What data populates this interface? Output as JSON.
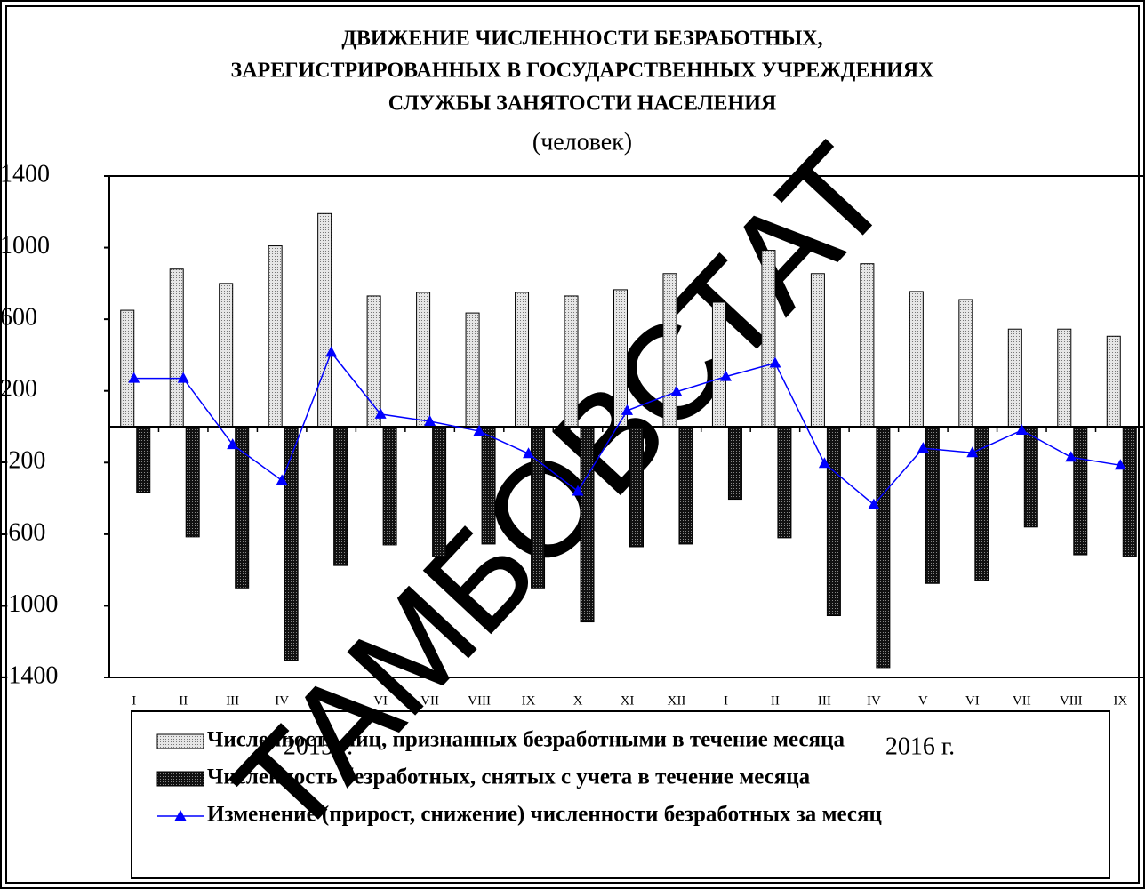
{
  "chart_data": {
    "type": "bar_line",
    "title_lines": [
      "ДВИЖЕНИЕ ЧИСЛЕННОСТИ БЕЗРАБОТНЫХ,",
      "ЗАРЕГИСТРИРОВАННЫХ В ГОСУДАРСТВЕННЫХ УЧРЕЖДЕНИЯХ",
      "СЛУЖБЫ ЗАНЯТОСТИ НАСЕЛЕНИЯ"
    ],
    "subtitle": "(человек)",
    "watermark": "ТАМБОВСТАТ",
    "categories": [
      "I",
      "II",
      "III",
      "IV",
      "V",
      "VI",
      "VII",
      "VIII",
      "IX",
      "X",
      "XI",
      "XII",
      "I",
      "II",
      "III",
      "IV",
      "V",
      "VI",
      "VII",
      "VIII",
      "IX"
    ],
    "groups": [
      "2015 г.",
      "2016 г."
    ],
    "series": [
      {
        "name": "Численность лиц, признанных безработными в течение месяца",
        "type": "bar",
        "color": "#e6e6e6",
        "values": [
          650,
          880,
          800,
          1010,
          1190,
          730,
          750,
          635,
          750,
          730,
          765,
          855,
          695,
          985,
          855,
          910,
          755,
          710,
          545,
          545,
          505
        ]
      },
      {
        "name": "Численность безработных, снятых с учета в течение месяца",
        "type": "bar",
        "color": "#111111",
        "values": [
          -365,
          -615,
          -900,
          -1305,
          -775,
          -660,
          -725,
          -655,
          -900,
          -1090,
          -670,
          -655,
          -405,
          -620,
          -1055,
          -1345,
          -875,
          -860,
          -560,
          -715,
          -725
        ]
      },
      {
        "name": "Изменение (прирост, снижение) численности  безработных за месяц",
        "type": "line",
        "color": "#0000ff",
        "values": [
          270,
          270,
          -100,
          -300,
          415,
          70,
          30,
          -25,
          -150,
          -360,
          90,
          195,
          280,
          355,
          -205,
          -435,
          -120,
          -145,
          -20,
          -170,
          -215
        ]
      }
    ],
    "ylim": [
      -1400,
      1400
    ],
    "yticks": [
      1400,
      1000,
      600,
      200,
      -200,
      -600,
      -1000,
      -1400
    ]
  }
}
